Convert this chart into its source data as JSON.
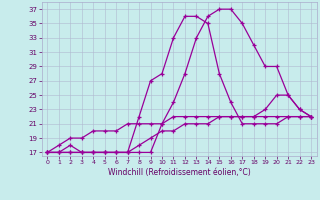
{
  "xlabel": "Windchill (Refroidissement éolien,°C)",
  "background_color": "#c8ecec",
  "line_color": "#990099",
  "xlim": [
    -0.5,
    23.5
  ],
  "ylim": [
    16.5,
    38.0
  ],
  "yticks": [
    17,
    19,
    21,
    23,
    25,
    27,
    29,
    31,
    33,
    35,
    37
  ],
  "xticks": [
    0,
    1,
    2,
    3,
    4,
    5,
    6,
    7,
    8,
    9,
    10,
    11,
    12,
    13,
    14,
    15,
    16,
    17,
    18,
    19,
    20,
    21,
    22,
    23
  ],
  "series": [
    [
      17,
      17,
      18,
      17,
      17,
      17,
      17,
      17,
      17,
      17,
      21,
      24,
      28,
      33,
      36,
      37,
      37,
      35,
      32,
      29,
      29,
      25,
      23,
      22
    ],
    [
      17,
      17,
      17,
      17,
      17,
      17,
      17,
      17,
      22,
      27,
      28,
      33,
      36,
      36,
      35,
      28,
      24,
      21,
      21,
      21,
      21,
      22,
      22,
      22
    ],
    [
      17,
      18,
      19,
      19,
      20,
      20,
      20,
      21,
      21,
      21,
      21,
      22,
      22,
      22,
      22,
      22,
      22,
      22,
      22,
      23,
      25,
      25,
      23,
      22
    ],
    [
      17,
      17,
      17,
      17,
      17,
      17,
      17,
      17,
      18,
      19,
      20,
      20,
      21,
      21,
      21,
      22,
      22,
      22,
      22,
      22,
      22,
      22,
      22,
      22
    ]
  ]
}
